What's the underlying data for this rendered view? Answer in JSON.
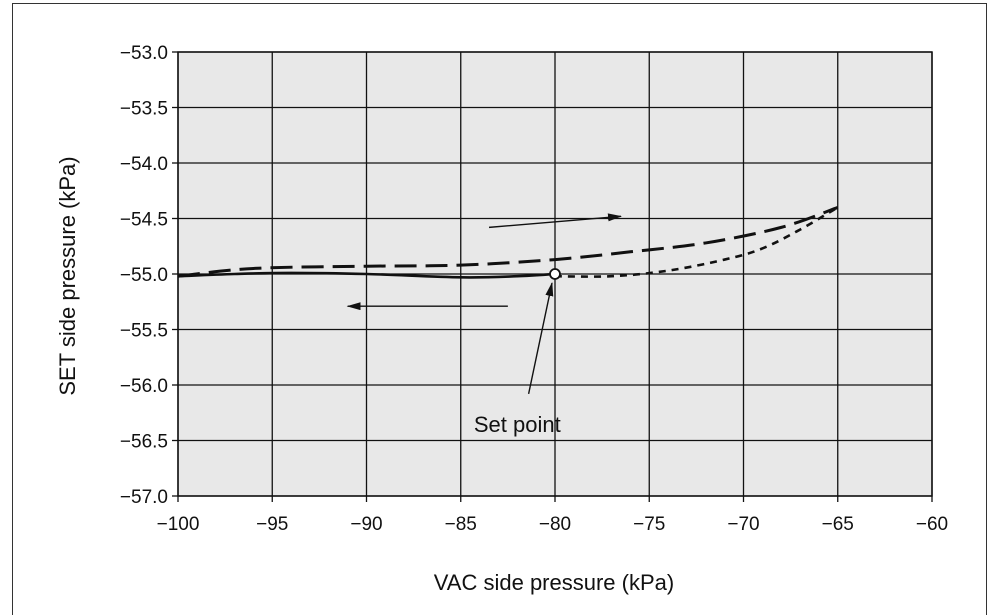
{
  "chart_data": {
    "type": "line",
    "xlabel": "VAC side pressure (kPa)",
    "ylabel": "SET side pressure (kPa)",
    "xlim": [
      -100,
      -60
    ],
    "ylim": [
      -57.0,
      -53.0
    ],
    "x_ticks": [
      -100,
      -95,
      -90,
      -85,
      -80,
      -75,
      -70,
      -65,
      -60
    ],
    "y_ticks": [
      -53.0,
      -53.5,
      -54.0,
      -54.5,
      -55.0,
      -55.5,
      -56.0,
      -56.5,
      -57.0
    ],
    "x_tick_labels": [
      "−100",
      "−95",
      "−90",
      "−85",
      "−80",
      "−75",
      "−70",
      "−65",
      "−60"
    ],
    "y_tick_labels": [
      "−53.0",
      "−53.5",
      "−54.0",
      "−54.5",
      "−55.0",
      "−55.5",
      "−56.0",
      "−56.5",
      "−57.0"
    ],
    "grid": true,
    "background_color": "#e8e8e8",
    "series": [
      {
        "style": "solid",
        "points": [
          [
            -100,
            -55.02
          ],
          [
            -97,
            -55.0
          ],
          [
            -94,
            -54.99
          ],
          [
            -90,
            -55.0
          ],
          [
            -85,
            -55.03
          ],
          [
            -82,
            -55.02
          ],
          [
            -80,
            -55.0
          ]
        ]
      },
      {
        "style": "dashed",
        "points": [
          [
            -100,
            -55.02
          ],
          [
            -96,
            -54.95
          ],
          [
            -90,
            -54.93
          ],
          [
            -85,
            -54.92
          ],
          [
            -80,
            -54.87
          ],
          [
            -76,
            -54.8
          ],
          [
            -72,
            -54.72
          ],
          [
            -68,
            -54.58
          ],
          [
            -65,
            -54.4
          ]
        ]
      },
      {
        "style": "dotted",
        "points": [
          [
            -80,
            -55.02
          ],
          [
            -77,
            -55.02
          ],
          [
            -74,
            -54.97
          ],
          [
            -71,
            -54.87
          ],
          [
            -69,
            -54.77
          ],
          [
            -67,
            -54.6
          ],
          [
            -65,
            -54.4
          ]
        ]
      }
    ],
    "set_point": {
      "x": -80,
      "y": -55.0
    },
    "arrows": [
      {
        "from": [
          -83.5,
          -54.58
        ],
        "to": [
          -76.5,
          -54.48
        ],
        "direction": "right"
      },
      {
        "from": [
          -82.5,
          -55.29
        ],
        "to": [
          -91,
          -55.29
        ],
        "direction": "left"
      }
    ],
    "annotation": {
      "text": "Set point",
      "anchor": [
        -82,
        -56.35
      ],
      "points_to": [
        -80,
        -55.0
      ]
    }
  }
}
